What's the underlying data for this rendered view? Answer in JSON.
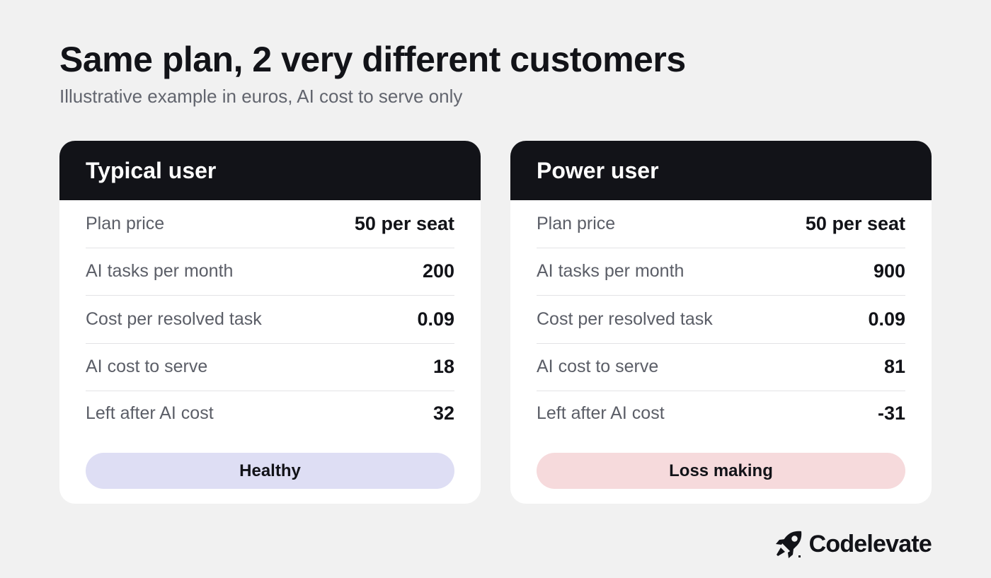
{
  "header": {
    "title": "Same plan, 2 very different customers",
    "subtitle": "Illustrative example in euros, AI cost to serve only"
  },
  "cards": [
    {
      "title": "Typical user",
      "rows": [
        {
          "label": "Plan price",
          "value": "50 per seat"
        },
        {
          "label": "AI tasks per month",
          "value": "200"
        },
        {
          "label": "Cost per resolved task",
          "value": "0.09"
        },
        {
          "label": "AI cost to serve",
          "value": "18"
        },
        {
          "label": "Left after AI cost",
          "value": "32"
        }
      ],
      "badge": {
        "label": "Healthy",
        "color": "#dedef4"
      }
    },
    {
      "title": "Power user",
      "rows": [
        {
          "label": "Plan price",
          "value": "50 per seat"
        },
        {
          "label": "AI tasks per month",
          "value": "900"
        },
        {
          "label": "Cost per resolved task",
          "value": "0.09"
        },
        {
          "label": "AI cost to serve",
          "value": "81"
        },
        {
          "label": "Left after AI cost",
          "value": "-31"
        }
      ],
      "badge": {
        "label": "Loss making",
        "color": "#f6dadc"
      }
    }
  ],
  "brand": {
    "name": "Codelevate",
    "icon": "rocket-logo-icon"
  }
}
